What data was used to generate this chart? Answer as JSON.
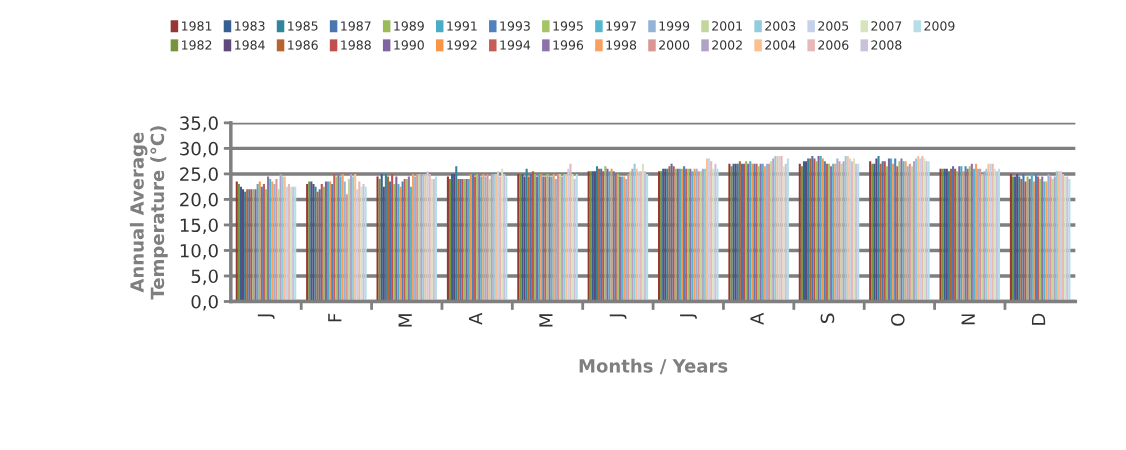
{
  "chart_data": {
    "type": "bar",
    "xlabel": "Months / Years",
    "ylabel": "Annual Average\nTemperature (°C)",
    "categories": [
      "J",
      "F",
      "M",
      "A",
      "M",
      "J",
      "J",
      "A",
      "S",
      "O",
      "N",
      "D"
    ],
    "ylim": [
      0,
      35
    ],
    "yticks": [
      {
        "value": 0,
        "label": "0,0"
      },
      {
        "value": 5,
        "label": "5,0"
      },
      {
        "value": 10,
        "label": "10,0"
      },
      {
        "value": 15,
        "label": "15,0"
      },
      {
        "value": 20,
        "label": "20,0"
      },
      {
        "value": 25,
        "label": "25,0"
      },
      {
        "value": 30,
        "label": "30,0"
      },
      {
        "value": 35,
        "label": "35,0"
      }
    ],
    "grid": "y",
    "legend": "top",
    "series": [
      {
        "name": "1981",
        "color": "#953735",
        "values": [
          23.5,
          23.0,
          24.5,
          24.5,
          25.0,
          25.5,
          25.5,
          27.0,
          27.0,
          27.5,
          26.0,
          25.0
        ]
      },
      {
        "name": "1982",
        "color": "#77933c",
        "values": [
          23.0,
          23.5,
          24.0,
          24.0,
          25.0,
          25.5,
          25.5,
          26.5,
          26.5,
          27.0,
          26.0,
          24.5
        ]
      },
      {
        "name": "1983",
        "color": "#376092",
        "values": [
          22.5,
          23.5,
          25.0,
          25.0,
          25.0,
          25.5,
          26.0,
          27.0,
          27.5,
          27.0,
          26.0,
          24.5
        ]
      },
      {
        "name": "1984",
        "color": "#5f497a",
        "values": [
          22.0,
          23.0,
          22.5,
          25.0,
          24.5,
          25.5,
          26.0,
          27.0,
          27.5,
          28.0,
          26.0,
          25.0
        ]
      },
      {
        "name": "1985",
        "color": "#31859c",
        "values": [
          21.5,
          22.5,
          25.0,
          26.5,
          26.0,
          26.5,
          26.0,
          27.0,
          28.0,
          28.5,
          25.5,
          24.5
        ]
      },
      {
        "name": "1986",
        "color": "#b7652e",
        "values": [
          22.0,
          21.5,
          24.5,
          24.0,
          24.5,
          26.0,
          26.5,
          27.5,
          28.0,
          27.0,
          26.0,
          24.0
        ]
      },
      {
        "name": "1987",
        "color": "#4a76b0",
        "values": [
          22.0,
          22.0,
          23.5,
          24.0,
          25.0,
          26.0,
          27.0,
          27.0,
          28.5,
          27.5,
          26.5,
          25.0
        ]
      },
      {
        "name": "1988",
        "color": "#c0504d",
        "values": [
          22.0,
          23.0,
          25.0,
          24.0,
          25.5,
          25.5,
          26.5,
          27.0,
          28.0,
          27.5,
          26.0,
          23.5
        ]
      },
      {
        "name": "1989",
        "color": "#9bbb59",
        "values": [
          22.0,
          22.5,
          23.0,
          24.0,
          25.0,
          26.5,
          26.0,
          27.5,
          27.5,
          26.5,
          25.5,
          24.5
        ]
      },
      {
        "name": "1990",
        "color": "#8064a2",
        "values": [
          22.0,
          23.5,
          24.5,
          24.0,
          24.5,
          26.0,
          26.0,
          27.0,
          28.5,
          28.0,
          26.5,
          24.0
        ]
      },
      {
        "name": "1991",
        "color": "#4bacc6",
        "values": [
          23.0,
          23.5,
          23.0,
          24.0,
          25.0,
          25.5,
          26.0,
          27.5,
          28.5,
          28.0,
          26.5,
          25.0
        ]
      },
      {
        "name": "1992",
        "color": "#f79646",
        "values": [
          23.5,
          23.5,
          22.5,
          25.0,
          25.0,
          26.0,
          26.0,
          27.0,
          28.0,
          27.0,
          25.5,
          23.5
        ]
      },
      {
        "name": "1993",
        "color": "#4f81bd",
        "values": [
          22.5,
          23.0,
          23.5,
          25.0,
          24.5,
          25.5,
          26.5,
          27.0,
          27.5,
          28.0,
          26.5,
          25.0
        ]
      },
      {
        "name": "1994",
        "color": "#c75b58",
        "values": [
          23.0,
          25.0,
          24.0,
          24.5,
          24.5,
          25.0,
          26.0,
          27.0,
          27.0,
          26.5,
          26.0,
          24.5
        ]
      },
      {
        "name": "1995",
        "color": "#a5c465",
        "values": [
          22.0,
          24.5,
          24.0,
          25.0,
          25.0,
          25.0,
          26.0,
          26.5,
          27.0,
          27.5,
          26.5,
          24.0
        ]
      },
      {
        "name": "1996",
        "color": "#8b72ab",
        "values": [
          24.5,
          25.0,
          24.5,
          25.0,
          24.5,
          24.5,
          26.0,
          27.0,
          26.5,
          28.0,
          27.0,
          24.5
        ]
      },
      {
        "name": "1997",
        "color": "#56b6cf",
        "values": [
          24.0,
          24.5,
          22.5,
          24.5,
          24.5,
          24.5,
          25.5,
          27.0,
          27.0,
          27.5,
          26.0,
          23.5
        ]
      },
      {
        "name": "1998",
        "color": "#f9a060",
        "values": [
          23.5,
          25.0,
          25.0,
          25.0,
          25.0,
          24.5,
          26.0,
          26.5,
          27.0,
          27.5,
          27.0,
          23.5
        ]
      },
      {
        "name": "1999",
        "color": "#95b3d7",
        "values": [
          23.0,
          23.5,
          24.5,
          24.5,
          24.0,
          24.0,
          26.0,
          27.0,
          28.0,
          26.5,
          26.0,
          25.0
        ]
      },
      {
        "name": "2000",
        "color": "#d99694",
        "values": [
          24.0,
          21.0,
          25.0,
          25.0,
          25.0,
          25.0,
          25.5,
          27.0,
          27.5,
          27.0,
          26.0,
          24.5
        ]
      },
      {
        "name": "2001",
        "color": "#c3d69b",
        "values": [
          22.0,
          24.0,
          25.0,
          24.0,
          25.0,
          25.5,
          25.5,
          27.5,
          27.0,
          26.5,
          25.0,
          24.0
        ]
      },
      {
        "name": "2002",
        "color": "#b3a2c7",
        "values": [
          25.0,
          25.0,
          25.0,
          25.0,
          24.5,
          26.0,
          26.0,
          28.0,
          27.5,
          27.5,
          25.5,
          24.5
        ]
      },
      {
        "name": "2003",
        "color": "#93cddd",
        "values": [
          24.5,
          24.5,
          25.0,
          25.0,
          25.0,
          27.0,
          26.0,
          28.5,
          28.5,
          28.0,
          26.0,
          25.5
        ]
      },
      {
        "name": "2004",
        "color": "#fac090",
        "values": [
          24.5,
          25.0,
          25.0,
          25.0,
          25.0,
          26.0,
          28.0,
          28.5,
          28.5,
          28.5,
          27.0,
          25.5
        ]
      },
      {
        "name": "2005",
        "color": "#c5d2ea",
        "values": [
          22.5,
          22.0,
          25.5,
          25.5,
          26.0,
          25.5,
          28.0,
          28.5,
          28.0,
          28.0,
          27.0,
          25.5
        ]
      },
      {
        "name": "2006",
        "color": "#e6b9b8",
        "values": [
          23.0,
          23.5,
          25.0,
          24.5,
          27.0,
          25.5,
          27.5,
          28.5,
          27.5,
          28.5,
          27.0,
          25.0
        ]
      },
      {
        "name": "2007",
        "color": "#d7e4bd",
        "values": [
          22.5,
          22.5,
          24.0,
          26.0,
          25.0,
          27.0,
          26.0,
          26.5,
          28.0,
          28.0,
          26.0,
          24.5
        ]
      },
      {
        "name": "2008",
        "color": "#ccc1da",
        "values": [
          22.5,
          23.0,
          24.0,
          25.0,
          24.0,
          25.5,
          27.0,
          27.0,
          27.0,
          27.5,
          25.5,
          24.5
        ]
      },
      {
        "name": "2009",
        "color": "#b7dee8",
        "values": [
          22.5,
          22.5,
          24.5,
          24.5,
          25.0,
          25.0,
          26.0,
          28.0,
          27.0,
          27.5,
          26.0,
          24.0
        ]
      }
    ]
  }
}
